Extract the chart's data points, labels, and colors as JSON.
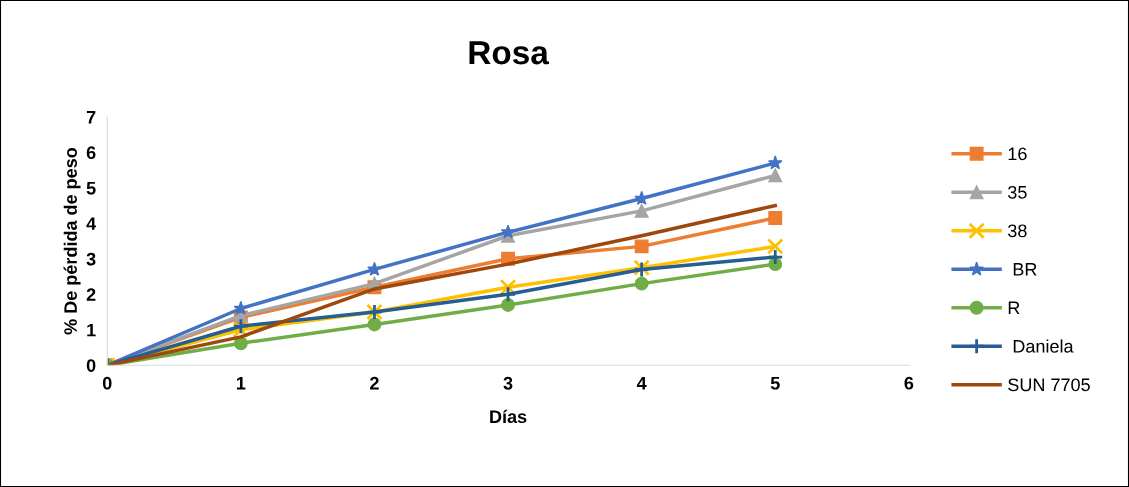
{
  "chart_data": {
    "type": "line",
    "title": "Rosa",
    "xlabel": "Días",
    "ylabel": "% De pérdida de peso",
    "x": [
      0,
      1,
      2,
      3,
      4,
      5
    ],
    "xlim": [
      0,
      6
    ],
    "xticks": [
      0,
      1,
      2,
      3,
      4,
      5,
      6
    ],
    "ylim": [
      0,
      7
    ],
    "yticks": [
      0,
      1,
      2,
      3,
      4,
      5,
      6,
      7
    ],
    "grid": false,
    "legend": "right",
    "line_style": "solid",
    "series": [
      {
        "name": "16",
        "color": "#ed7d31",
        "marker": "square",
        "values": [
          0,
          1.35,
          2.2,
          3.0,
          3.35,
          4.15
        ]
      },
      {
        "name": "35",
        "color": "#a5a5a5",
        "marker": "triangle",
        "values": [
          0,
          1.4,
          2.3,
          3.65,
          4.35,
          5.35
        ]
      },
      {
        "name": "38",
        "color": "#ffc000",
        "marker": "cross",
        "values": [
          0,
          1.0,
          1.5,
          2.2,
          2.75,
          3.35
        ]
      },
      {
        "name": " BR",
        "color": "#4472c4",
        "marker": "star",
        "values": [
          0,
          1.6,
          2.7,
          3.75,
          4.7,
          5.7
        ]
      },
      {
        "name": "R",
        "color": "#70ad47",
        "marker": "circle",
        "values": [
          0,
          0.62,
          1.15,
          1.7,
          2.3,
          2.85
        ]
      },
      {
        "name": " Daniela",
        "color": "#255e91",
        "marker": "plus",
        "values": [
          0,
          1.1,
          1.5,
          2.0,
          2.7,
          3.05
        ]
      },
      {
        "name": "SUN 7705",
        "color": "#9e480e",
        "marker": "none",
        "values": [
          0,
          0.8,
          2.15,
          2.85,
          3.65,
          4.5
        ]
      }
    ]
  }
}
